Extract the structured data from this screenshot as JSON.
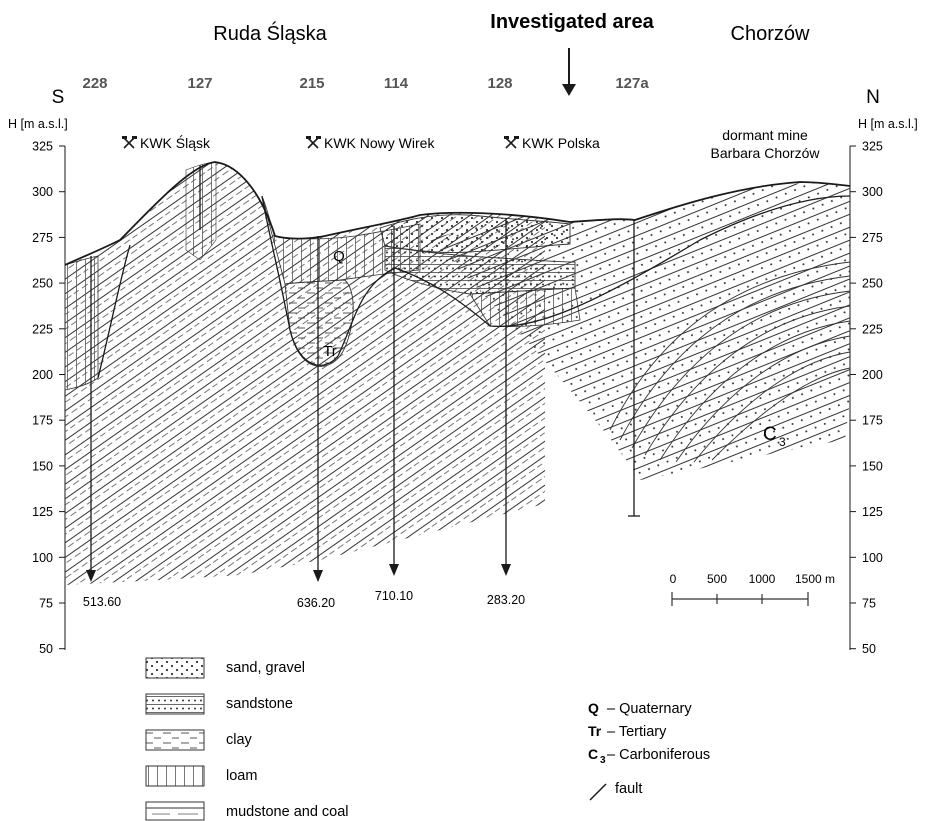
{
  "header": {
    "left_town": "Ruda Śląska",
    "center": "Investigated area",
    "right_town": "Chorzów"
  },
  "directions": {
    "south": "S",
    "north": "N"
  },
  "boreholes": [
    "228",
    "127",
    "215",
    "114",
    "128",
    "127a"
  ],
  "axis": {
    "label_left": "H [m a.s.l.]",
    "label_right": "H [m a.s.l.]",
    "ticks": [
      "325",
      "300",
      "275",
      "250",
      "225",
      "200",
      "175",
      "150",
      "125",
      "100",
      "75",
      "50"
    ]
  },
  "mines": [
    {
      "icon": "mine-hammers-icon",
      "name": "KWK Śląsk"
    },
    {
      "icon": "mine-hammers-icon",
      "name": "KWK Nowy Wirek"
    },
    {
      "icon": "mine-hammers-icon",
      "name": "KWK Polska"
    }
  ],
  "dormant_mine": {
    "line1": "dormant mine",
    "line2": "Barbara Chorzów"
  },
  "depths": [
    "513.60",
    "636.20",
    "710.10",
    "283.20"
  ],
  "section_labels": {
    "q": "Q",
    "tr": "Tr",
    "c3_main": "C",
    "c3_sub": "3"
  },
  "scale_bar": {
    "ticks": [
      "0",
      "500",
      "1000",
      "1500 m"
    ]
  },
  "legend_left": [
    {
      "pattern": "sand-gravel",
      "label": "sand, gravel"
    },
    {
      "pattern": "sandstone",
      "label": "sandstone"
    },
    {
      "pattern": "clay",
      "label": "clay"
    },
    {
      "pattern": "loam",
      "label": "loam"
    },
    {
      "pattern": "mudstone-coal",
      "label": "mudstone and coal"
    }
  ],
  "legend_right": [
    {
      "symbol": "Q",
      "sub": "",
      "label": "– Quaternary"
    },
    {
      "symbol": "Tr",
      "sub": "",
      "label": "– Tertiary"
    },
    {
      "symbol": "C",
      "sub": "3",
      "label": "– Carboniferous"
    },
    {
      "symbol": "fault-line-icon",
      "sub": "",
      "label": "fault"
    }
  ],
  "colors": {
    "ink": "#1a1a1a",
    "paper": "#ffffff",
    "pattern_grey": "#444444"
  }
}
